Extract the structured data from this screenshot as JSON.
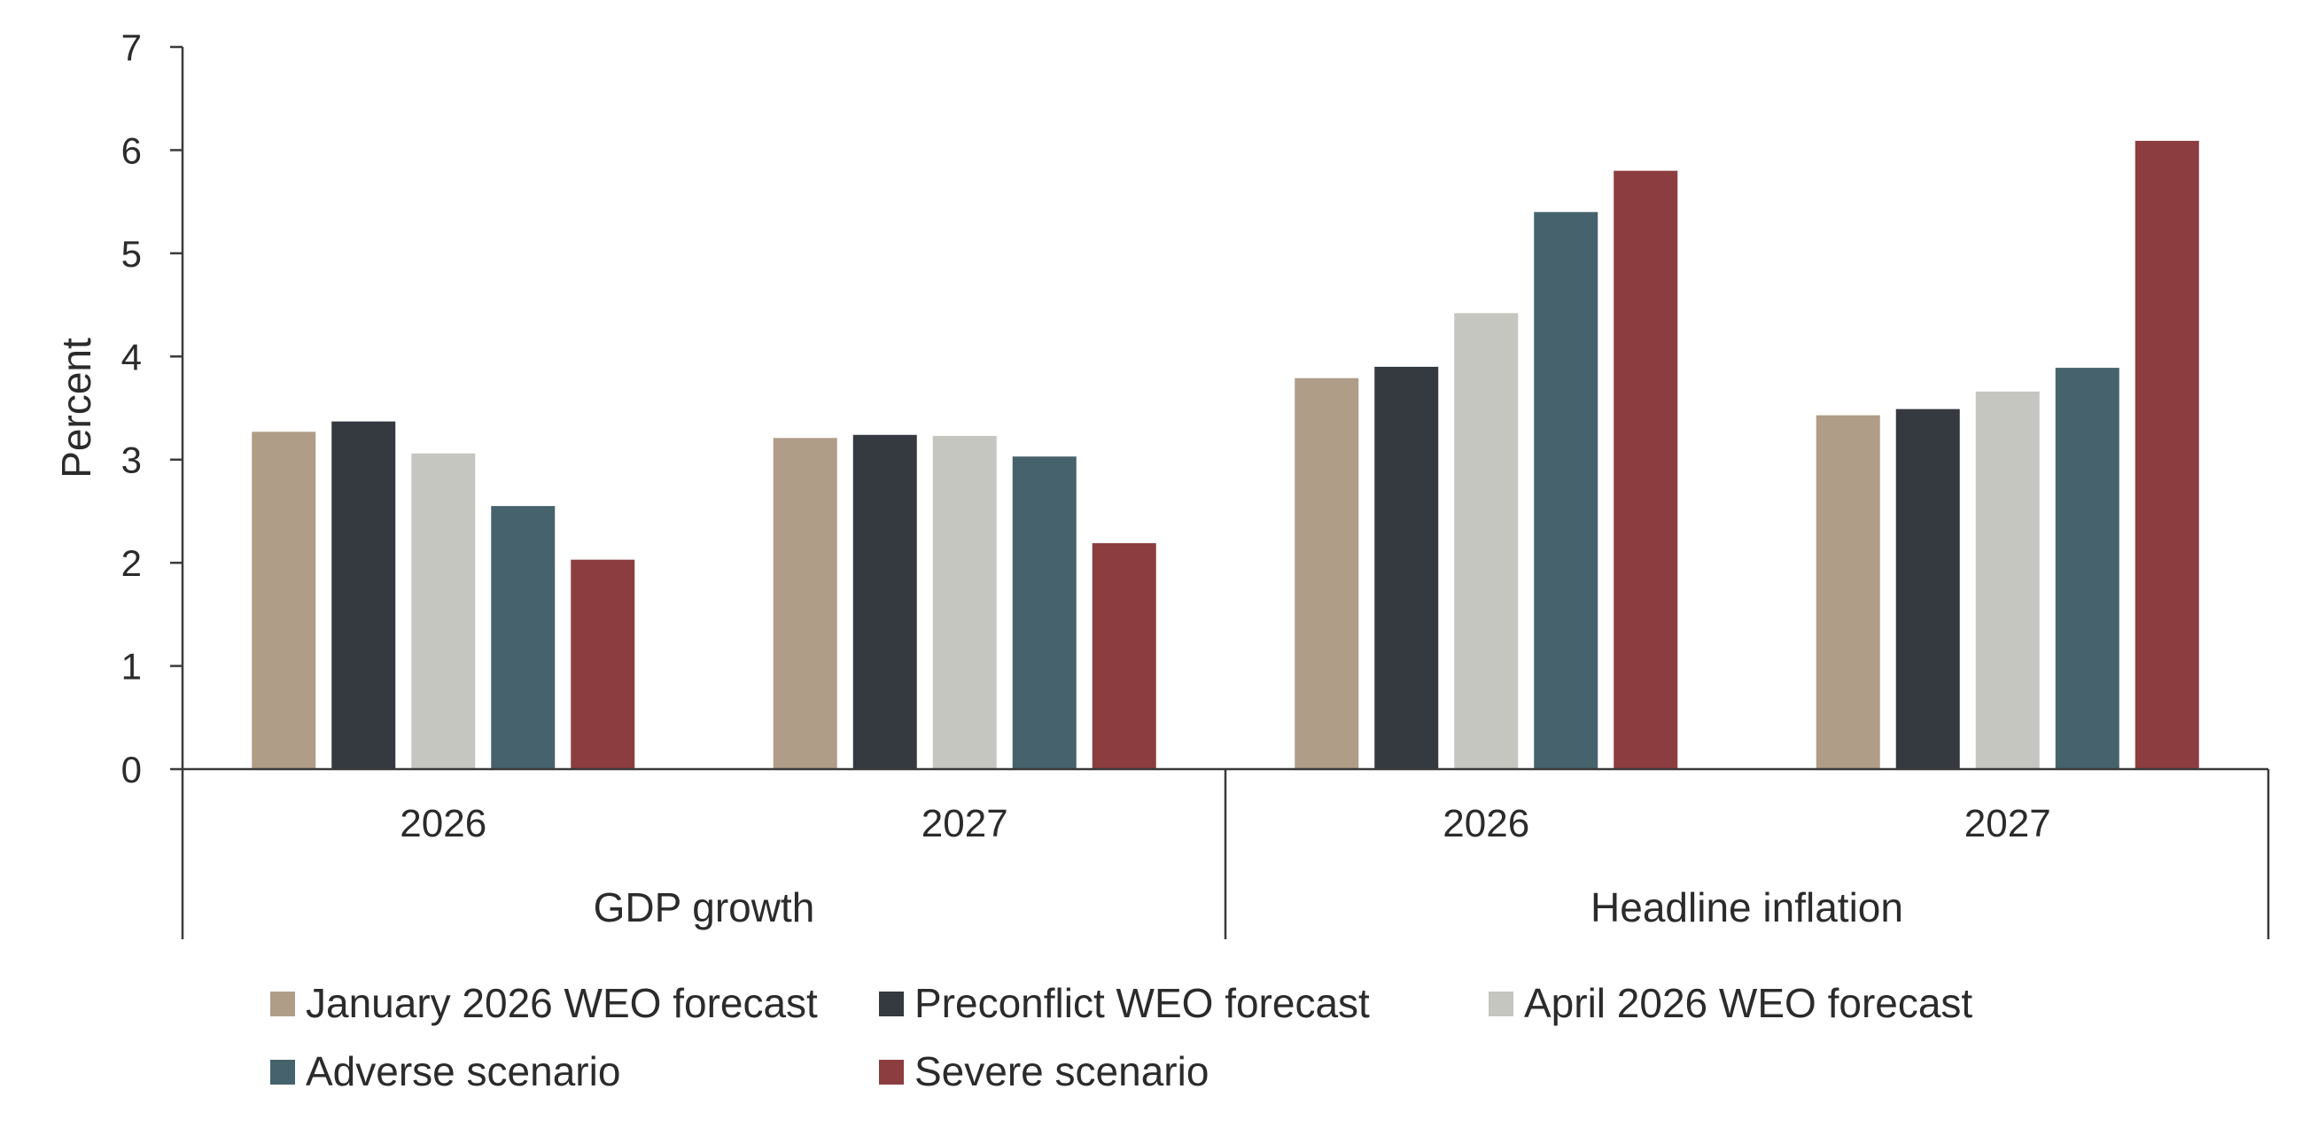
{
  "chart_data": {
    "type": "bar",
    "ylabel": "Percent",
    "ylim": [
      0,
      7
    ],
    "yticks": [
      0,
      1,
      2,
      3,
      4,
      5,
      6,
      7
    ],
    "groups": [
      {
        "label": "GDP growth",
        "categories": [
          "2026",
          "2027"
        ]
      },
      {
        "label": "Headline inflation",
        "categories": [
          "2026",
          "2027"
        ]
      }
    ],
    "series": [
      {
        "name": "January 2026 WEO forecast",
        "color": "#b09d87",
        "values": [
          3.27,
          3.21,
          3.79,
          3.43
        ]
      },
      {
        "name": "Preconflict WEO forecast",
        "color": "#343a40",
        "values": [
          3.37,
          3.24,
          3.9,
          3.49
        ]
      },
      {
        "name": "April 2026 WEO forecast",
        "color": "#c6c6c0",
        "values": [
          3.06,
          3.23,
          4.42,
          3.66
        ]
      },
      {
        "name": "Adverse scenario",
        "color": "#46626c",
        "values": [
          2.55,
          3.03,
          5.4,
          3.89
        ]
      },
      {
        "name": "Severe scenario",
        "color": "#8c3d3f",
        "values": [
          2.03,
          2.19,
          5.8,
          6.09
        ]
      }
    ],
    "legend_position": "bottom",
    "grid": false
  }
}
